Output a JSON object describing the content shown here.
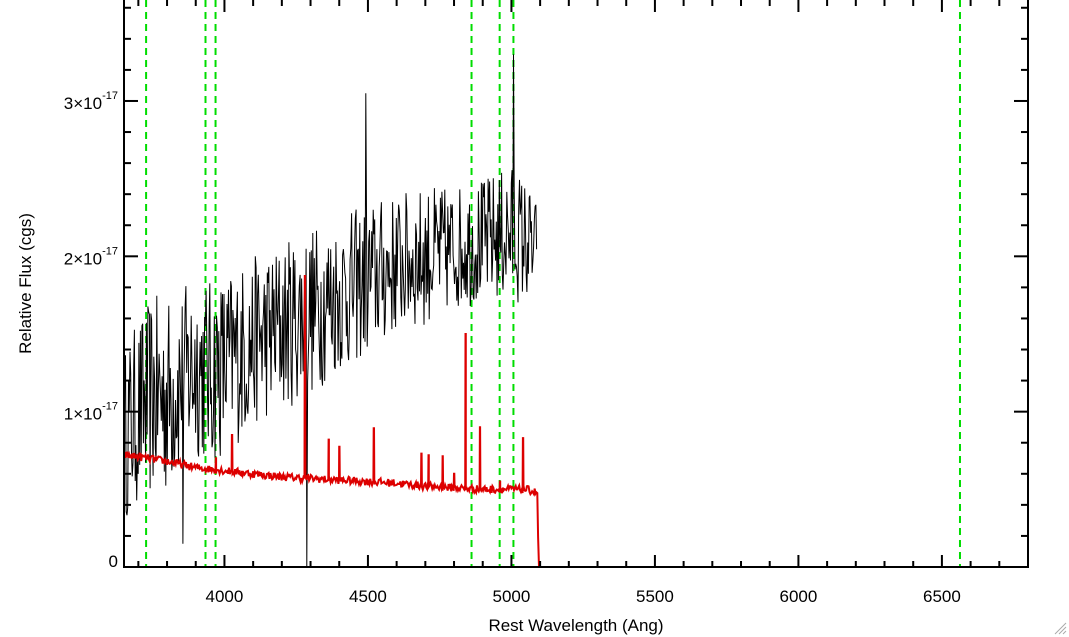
{
  "chart_data": {
    "type": "line",
    "title": "",
    "xlabel": "Rest Wavelength (Ang)",
    "ylabel": "Relative Flux (cgs)",
    "xlim": [
      3650,
      6800
    ],
    "ylim": [
      0,
      3.65e-17
    ],
    "grid": false,
    "x_ticks": [
      {
        "value": 4000,
        "label": "4000"
      },
      {
        "value": 4500,
        "label": "4500"
      },
      {
        "value": 5000,
        "label": "5000"
      },
      {
        "value": 5500,
        "label": "5500"
      },
      {
        "value": 6000,
        "label": "6000"
      },
      {
        "value": 6500,
        "label": "6500"
      }
    ],
    "y_ticks": [
      {
        "value": 0,
        "label": "0",
        "exp": ""
      },
      {
        "value": 1e-17,
        "label": "1×10",
        "exp": "-17"
      },
      {
        "value": 2e-17,
        "label": "2×10",
        "exp": "-17"
      },
      {
        "value": 3e-17,
        "label": "3×10",
        "exp": "-17"
      }
    ],
    "vlines": {
      "color": "#00dd00",
      "style": "dashed",
      "x": [
        3727,
        3934,
        3969,
        4861,
        4959,
        5007,
        6563
      ]
    },
    "series": [
      {
        "color": "#000000",
        "style": "noisy",
        "x": [
          3650,
          3700,
          3750,
          3800,
          3850,
          3900,
          3950,
          4000,
          4100,
          4200,
          4300,
          4400,
          4500,
          4600,
          4700,
          4800,
          4900,
          5000,
          5050,
          5090
        ],
        "y": [
          8.5e-18,
          1e-17,
          1.1e-17,
          1.1e-17,
          1.2e-17,
          1.3e-17,
          1.25e-17,
          1.3e-17,
          1.45e-17,
          1.55e-17,
          1.65e-17,
          1.75e-17,
          1.85e-17,
          1.95e-17,
          2e-17,
          2.05e-17,
          2.1e-17,
          2.15e-17,
          2.1e-17,
          2e-17
        ],
        "noise_amp": [
          5.5e-18,
          6e-18,
          6.5e-18,
          6.5e-18,
          6e-18,
          6e-18,
          6e-18,
          6e-18,
          5.5e-18,
          5.5e-18,
          5.5e-18,
          5e-18,
          5e-18,
          4.5e-18,
          4.5e-18,
          4e-18,
          4e-18,
          4.5e-18,
          4e-18,
          3.5e-18
        ],
        "spikes": [
          {
            "x": 4285,
            "y": 0.0
          },
          {
            "x": 5006,
            "y": 3.3e-17
          },
          {
            "x": 4490,
            "y": 3.05e-17
          },
          {
            "x": 3855,
            "y": 1.5e-18
          }
        ]
      },
      {
        "color": "#dd0000",
        "style": "model",
        "x": [
          3650,
          3700,
          3800,
          3900,
          4000,
          4100,
          4200,
          4300,
          4400,
          4500,
          4600,
          4700,
          4800,
          4900,
          5000,
          5050,
          5090,
          5095,
          6800
        ],
        "y": [
          7.2e-18,
          7.1e-18,
          6.8e-18,
          6.4e-18,
          6.2e-18,
          6e-18,
          5.8e-18,
          5.7e-18,
          5.6e-18,
          5.5e-18,
          5.4e-18,
          5.2e-18,
          5.1e-18,
          5e-18,
          5e-18,
          5e-18,
          4.8e-18,
          0.0,
          0.0
        ],
        "lines": [
          {
            "x": 3970,
            "y": 7e-18
          },
          {
            "x": 4026,
            "y": 8.5e-18
          },
          {
            "x": 4280,
            "y": 1.88e-17
          },
          {
            "x": 4363,
            "y": 8.2e-18
          },
          {
            "x": 4400,
            "y": 7.8e-18
          },
          {
            "x": 4520,
            "y": 9e-18
          },
          {
            "x": 4686,
            "y": 7.3e-18
          },
          {
            "x": 4711,
            "y": 7.2e-18
          },
          {
            "x": 4760,
            "y": 7.2e-18
          },
          {
            "x": 4800,
            "y": 6e-18
          },
          {
            "x": 4840,
            "y": 1.5e-17
          },
          {
            "x": 4890,
            "y": 9e-18
          },
          {
            "x": 4960,
            "y": 5.5e-18
          },
          {
            "x": 5040,
            "y": 8.3e-18
          }
        ]
      }
    ]
  }
}
